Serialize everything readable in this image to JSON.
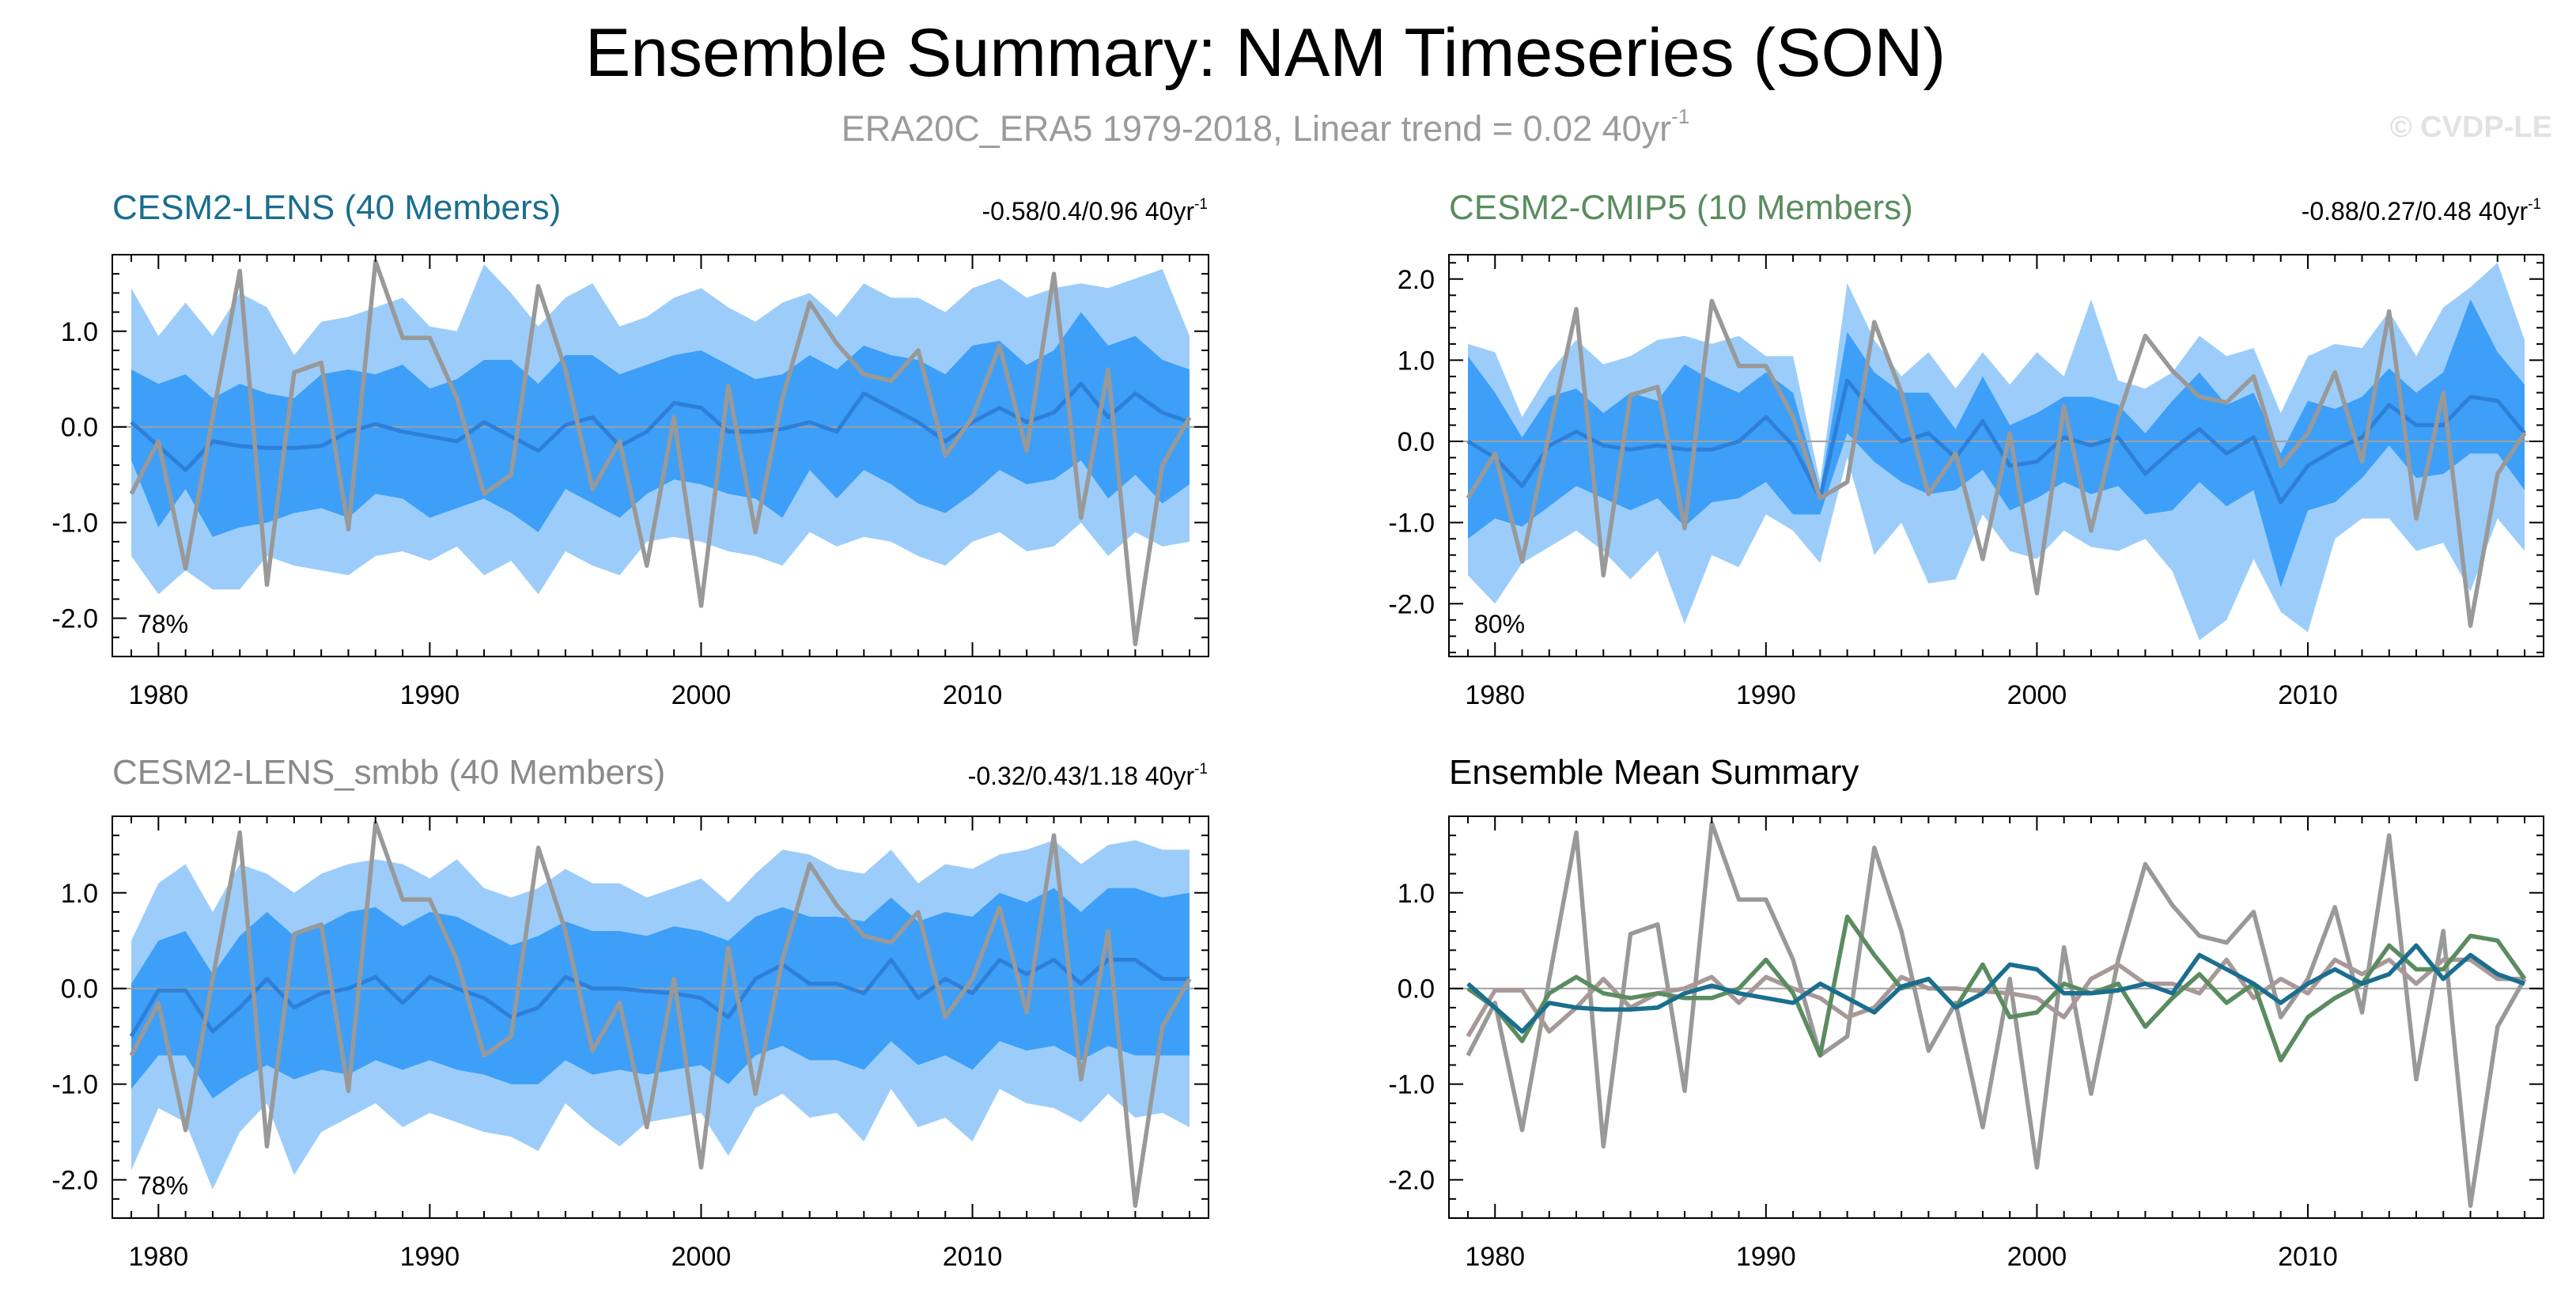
{
  "title": "Ensemble Summary: NAM Timeseries (SON)",
  "subtitle_main": "ERA20C_ERA5 1979-2018, Linear trend = 0.02 40yr",
  "subtitle_sup": "-1",
  "watermark": "© CVDP-LE",
  "colors": {
    "outer_band": "#9ccdfa",
    "inner_band": "#3d9ff7",
    "ens_mean_line": "#2e7fd8",
    "obs_line": "#999999",
    "zero_line": "#a0a0a0",
    "lens_title": "#1a6e8e",
    "cmip5_title": "#5a8c5f",
    "smbb_title": "#8a8a8a",
    "summary_title": "#000000"
  },
  "panels": [
    {
      "title": "CESM2-LENS (40 Members)",
      "stat": "-0.58/0.4/0.96 40yr",
      "stat_sup": "-1",
      "pct": "78%"
    },
    {
      "title": "CESM2-CMIP5 (10 Members)",
      "stat": "-0.88/0.27/0.48 40yr",
      "stat_sup": "-1",
      "pct": "80%"
    },
    {
      "title": "CESM2-LENS_smbb (40 Members)",
      "stat": "-0.32/0.43/1.18 40yr",
      "stat_sup": "-1",
      "pct": "78%"
    },
    {
      "title": "Ensemble Mean Summary",
      "stat": "",
      "stat_sup": "",
      "pct": ""
    }
  ],
  "chart_data": [
    {
      "type": "area",
      "name": "CESM2-LENS (40 Members)",
      "xlim": [
        1978.3,
        2018.7
      ],
      "ylim": [
        -2.4,
        1.8
      ],
      "yticks": [
        1.0,
        0.0,
        -1.0,
        -2.0
      ],
      "ytick_labels": [
        "1.0",
        "0.0",
        "-1.0",
        "-2.0"
      ],
      "xticks": [
        1980,
        1990,
        2000,
        2010
      ],
      "xtick_labels": [
        "1980",
        "1990",
        "2000",
        "2010"
      ],
      "x_start": 1979,
      "obs": [
        -0.7,
        -0.15,
        -1.48,
        0.1,
        1.63,
        -1.65,
        0.57,
        0.67,
        -1.07,
        1.73,
        0.93,
        0.93,
        0.3,
        -0.7,
        -0.5,
        1.47,
        0.6,
        -0.65,
        -0.15,
        -1.45,
        0.1,
        -1.87,
        0.43,
        -1.1,
        0.3,
        1.3,
        0.87,
        0.55,
        0.48,
        0.8,
        -0.3,
        0.1,
        0.85,
        -0.25,
        1.6,
        -0.95,
        0.6,
        -2.27,
        -0.4,
        0.1
      ],
      "mean": [
        0.05,
        -0.2,
        -0.45,
        -0.15,
        -0.2,
        -0.22,
        -0.22,
        -0.2,
        -0.05,
        0.03,
        -0.05,
        -0.1,
        -0.15,
        0.05,
        -0.1,
        -0.25,
        0.02,
        0.1,
        -0.2,
        -0.05,
        0.25,
        0.2,
        -0.05,
        -0.05,
        -0.02,
        0.05,
        -0.05,
        0.35,
        0.2,
        0.05,
        -0.15,
        0.05,
        0.2,
        0.05,
        0.15,
        0.45,
        0.1,
        0.35,
        0.15,
        0.05
      ],
      "p10": [
        -0.35,
        -1.05,
        -0.65,
        -1.15,
        -1.05,
        -1.0,
        -0.9,
        -0.85,
        -0.95,
        -0.7,
        -0.75,
        -0.95,
        -0.85,
        -0.75,
        -0.9,
        -1.1,
        -0.65,
        -0.8,
        -0.95,
        -0.7,
        -0.55,
        -0.6,
        -0.7,
        -0.75,
        -0.95,
        -0.45,
        -0.75,
        -0.45,
        -0.6,
        -0.8,
        -0.9,
        -0.7,
        -0.45,
        -0.6,
        -0.55,
        -0.35,
        -0.75,
        -0.5,
        -0.8,
        -0.6
      ],
      "p90": [
        0.6,
        0.45,
        0.55,
        0.3,
        0.45,
        0.35,
        0.3,
        0.55,
        0.6,
        0.55,
        0.65,
        0.4,
        0.5,
        0.7,
        0.7,
        0.45,
        0.75,
        0.75,
        0.55,
        0.65,
        0.75,
        0.8,
        0.65,
        0.5,
        0.55,
        0.75,
        0.6,
        0.85,
        0.75,
        0.7,
        0.55,
        0.85,
        0.9,
        0.65,
        0.8,
        1.2,
        0.85,
        0.95,
        0.7,
        0.6
      ],
      "min": [
        -1.35,
        -1.75,
        -1.5,
        -1.7,
        -1.7,
        -1.35,
        -1.45,
        -1.5,
        -1.55,
        -1.35,
        -1.3,
        -1.4,
        -1.25,
        -1.55,
        -1.4,
        -1.75,
        -1.3,
        -1.45,
        -1.55,
        -1.2,
        -1.15,
        -1.2,
        -1.3,
        -1.35,
        -1.45,
        -1.1,
        -1.25,
        -1.15,
        -1.2,
        -1.35,
        -1.45,
        -1.2,
        -1.1,
        -1.3,
        -1.25,
        -1.0,
        -1.35,
        -1.1,
        -1.25,
        -1.2
      ],
      "max": [
        1.45,
        0.95,
        1.3,
        0.95,
        1.4,
        1.25,
        0.75,
        1.1,
        1.15,
        1.25,
        1.35,
        1.05,
        1.0,
        1.7,
        1.4,
        1.05,
        1.35,
        1.5,
        1.05,
        1.15,
        1.35,
        1.45,
        1.25,
        1.1,
        1.3,
        1.4,
        1.15,
        1.5,
        1.35,
        1.35,
        1.2,
        1.45,
        1.55,
        1.35,
        1.45,
        1.5,
        1.45,
        1.55,
        1.65,
        0.95
      ]
    },
    {
      "type": "area",
      "name": "CESM2-CMIP5 (10 Members)",
      "xlim": [
        1978.3,
        2018.7
      ],
      "ylim": [
        -2.65,
        2.3
      ],
      "yticks": [
        2.0,
        1.0,
        0.0,
        -1.0,
        -2.0
      ],
      "ytick_labels": [
        "2.0",
        "1.0",
        "0.0",
        "-1.0",
        "-2.0"
      ],
      "xticks": [
        1980,
        1990,
        2000,
        2010
      ],
      "xtick_labels": [
        "1980",
        "1990",
        "2000",
        "2010"
      ],
      "x_start": 1979,
      "obs": [
        -0.7,
        -0.15,
        -1.48,
        0.1,
        1.63,
        -1.65,
        0.57,
        0.67,
        -1.07,
        1.73,
        0.93,
        0.93,
        0.3,
        -0.7,
        -0.5,
        1.47,
        0.6,
        -0.65,
        -0.15,
        -1.45,
        0.1,
        -1.87,
        0.43,
        -1.1,
        0.3,
        1.3,
        0.87,
        0.55,
        0.48,
        0.8,
        -0.3,
        0.1,
        0.85,
        -0.25,
        1.6,
        -0.95,
        0.6,
        -2.27,
        -0.4,
        0.1
      ],
      "mean": [
        0.0,
        -0.2,
        -0.55,
        -0.05,
        0.12,
        -0.05,
        -0.1,
        -0.05,
        -0.1,
        -0.1,
        0.0,
        0.3,
        -0.05,
        -0.7,
        0.75,
        0.35,
        0.0,
        0.1,
        -0.2,
        0.25,
        -0.3,
        -0.25,
        0.05,
        -0.05,
        0.05,
        -0.4,
        -0.1,
        0.15,
        -0.15,
        0.05,
        -0.75,
        -0.3,
        -0.1,
        0.05,
        0.45,
        0.2,
        0.2,
        0.55,
        0.5,
        0.1
      ],
      "p10": [
        -1.2,
        -0.95,
        -1.05,
        -0.8,
        -0.55,
        -0.7,
        -0.85,
        -0.7,
        -1.05,
        -0.75,
        -0.7,
        -0.5,
        -0.9,
        -0.9,
        0.1,
        -0.25,
        -0.5,
        -0.65,
        -0.6,
        -0.35,
        -0.85,
        -0.7,
        -0.5,
        -0.65,
        -0.55,
        -0.9,
        -0.85,
        -0.5,
        -0.8,
        -0.6,
        -1.8,
        -0.85,
        -0.75,
        -0.45,
        -0.05,
        -0.45,
        -0.4,
        -0.15,
        -0.15,
        -0.6
      ],
      "p90": [
        1.05,
        0.6,
        0.05,
        0.55,
        0.65,
        0.35,
        0.6,
        0.5,
        0.95,
        0.75,
        0.6,
        0.85,
        0.6,
        -0.6,
        1.35,
        0.85,
        0.6,
        0.6,
        0.15,
        0.8,
        0.2,
        0.35,
        0.55,
        0.55,
        0.45,
        0.1,
        0.5,
        0.85,
        0.45,
        0.6,
        -0.15,
        0.5,
        0.4,
        0.55,
        0.9,
        0.6,
        0.85,
        1.75,
        1.1,
        0.7
      ],
      "min": [
        -1.65,
        -2.0,
        -1.5,
        -1.3,
        -1.1,
        -1.35,
        -1.7,
        -1.35,
        -2.25,
        -1.4,
        -1.55,
        -0.9,
        -1.1,
        -1.5,
        -0.2,
        -1.4,
        -1.0,
        -1.75,
        -1.7,
        -0.9,
        -1.35,
        -1.45,
        -1.1,
        -1.3,
        -1.35,
        -1.2,
        -1.6,
        -2.45,
        -2.2,
        -1.45,
        -2.1,
        -2.35,
        -1.2,
        -0.95,
        -0.95,
        -1.35,
        -1.25,
        -1.85,
        -0.95,
        -1.35
      ],
      "max": [
        1.2,
        1.1,
        0.3,
        0.85,
        1.25,
        0.95,
        1.05,
        1.25,
        1.3,
        1.2,
        1.3,
        1.05,
        1.05,
        -0.5,
        1.95,
        1.25,
        0.8,
        1.1,
        0.65,
        1.1,
        0.7,
        1.1,
        0.8,
        1.75,
        0.75,
        0.65,
        0.85,
        1.3,
        1.05,
        1.15,
        0.35,
        1.05,
        1.2,
        1.15,
        1.6,
        1.05,
        1.65,
        1.9,
        2.2,
        1.25
      ]
    },
    {
      "type": "area",
      "name": "CESM2-LENS_smbb (40 Members)",
      "xlim": [
        1978.3,
        2018.7
      ],
      "ylim": [
        -2.4,
        1.8
      ],
      "yticks": [
        1.0,
        0.0,
        -1.0,
        -2.0
      ],
      "ytick_labels": [
        "1.0",
        "0.0",
        "-1.0",
        "-2.0"
      ],
      "xticks": [
        1980,
        1990,
        2000,
        2010
      ],
      "xtick_labels": [
        "1980",
        "1990",
        "2000",
        "2010"
      ],
      "x_start": 1979,
      "obs": [
        -0.7,
        -0.15,
        -1.48,
        0.1,
        1.63,
        -1.65,
        0.57,
        0.67,
        -1.07,
        1.73,
        0.93,
        0.93,
        0.3,
        -0.7,
        -0.5,
        1.47,
        0.6,
        -0.65,
        -0.15,
        -1.45,
        0.1,
        -1.87,
        0.43,
        -1.1,
        0.3,
        1.3,
        0.87,
        0.55,
        0.48,
        0.8,
        -0.3,
        0.1,
        0.85,
        -0.25,
        1.6,
        -0.95,
        0.6,
        -2.27,
        -0.4,
        0.1
      ],
      "mean": [
        -0.5,
        -0.02,
        -0.02,
        -0.45,
        -0.2,
        0.1,
        -0.2,
        -0.05,
        0.0,
        0.12,
        -0.15,
        0.12,
        0.0,
        -0.1,
        -0.3,
        -0.2,
        0.12,
        0.0,
        0.0,
        -0.03,
        -0.05,
        -0.1,
        -0.3,
        0.1,
        0.25,
        0.05,
        0.05,
        -0.05,
        0.3,
        -0.1,
        0.1,
        -0.05,
        0.3,
        0.15,
        0.3,
        0.05,
        0.3,
        0.3,
        0.1,
        0.1
      ],
      "p10": [
        -1.05,
        -0.7,
        -0.7,
        -1.15,
        -0.95,
        -0.8,
        -0.95,
        -0.85,
        -0.9,
        -0.75,
        -0.85,
        -0.75,
        -0.85,
        -0.9,
        -1.0,
        -1.0,
        -0.75,
        -0.9,
        -0.85,
        -0.9,
        -0.85,
        -0.8,
        -1.0,
        -0.7,
        -0.6,
        -0.75,
        -0.75,
        -0.85,
        -0.55,
        -0.8,
        -0.7,
        -0.85,
        -0.55,
        -0.65,
        -0.6,
        -0.75,
        -0.6,
        -0.7,
        -0.7,
        -0.7
      ],
      "p90": [
        0.05,
        0.5,
        0.6,
        0.15,
        0.55,
        0.8,
        0.55,
        0.65,
        0.8,
        0.85,
        0.65,
        0.8,
        0.75,
        0.6,
        0.45,
        0.55,
        0.7,
        0.6,
        0.6,
        0.55,
        0.65,
        0.6,
        0.5,
        0.75,
        0.85,
        0.75,
        0.75,
        0.7,
        0.95,
        0.7,
        0.8,
        0.75,
        1.0,
        0.9,
        1.05,
        0.8,
        1.05,
        1.05,
        0.95,
        1.0
      ],
      "min": [
        -1.9,
        -1.25,
        -1.4,
        -2.1,
        -1.5,
        -1.2,
        -1.95,
        -1.5,
        -1.35,
        -1.2,
        -1.45,
        -1.3,
        -1.4,
        -1.5,
        -1.55,
        -1.7,
        -1.2,
        -1.45,
        -1.65,
        -1.4,
        -1.35,
        -1.3,
        -1.75,
        -1.25,
        -1.1,
        -1.35,
        -1.3,
        -1.6,
        -1.05,
        -1.45,
        -1.35,
        -1.6,
        -1.05,
        -1.2,
        -1.25,
        -1.4,
        -1.1,
        -1.35,
        -1.3,
        -1.45
      ],
      "max": [
        0.5,
        1.1,
        1.3,
        0.8,
        1.3,
        1.2,
        1.0,
        1.2,
        1.3,
        1.35,
        1.3,
        1.15,
        1.35,
        1.05,
        0.95,
        1.05,
        1.25,
        1.1,
        1.1,
        0.95,
        1.05,
        1.15,
        0.9,
        1.2,
        1.45,
        1.4,
        1.25,
        1.2,
        1.45,
        1.1,
        1.3,
        1.25,
        1.4,
        1.45,
        1.55,
        1.3,
        1.5,
        1.55,
        1.45,
        1.45
      ]
    },
    {
      "type": "line",
      "name": "Ensemble Mean Summary",
      "xlim": [
        1978.3,
        2018.7
      ],
      "ylim": [
        -2.4,
        1.8
      ],
      "yticks": [
        1.0,
        0.0,
        -1.0,
        -2.0
      ],
      "ytick_labels": [
        "1.0",
        "0.0",
        "-1.0",
        "-2.0"
      ],
      "xticks": [
        1980,
        1990,
        2000,
        2010
      ],
      "xtick_labels": [
        "1980",
        "1990",
        "2000",
        "2010"
      ],
      "x_start": 1979,
      "series": [
        {
          "name": "ERA20C_ERA5",
          "color": "#999999",
          "values": [
            -0.7,
            -0.15,
            -1.48,
            0.1,
            1.63,
            -1.65,
            0.57,
            0.67,
            -1.07,
            1.73,
            0.93,
            0.93,
            0.3,
            -0.7,
            -0.5,
            1.47,
            0.6,
            -0.65,
            -0.15,
            -1.45,
            0.1,
            -1.87,
            0.43,
            -1.1,
            0.3,
            1.3,
            0.87,
            0.55,
            0.48,
            0.8,
            -0.3,
            0.1,
            0.85,
            -0.25,
            1.6,
            -0.95,
            0.6,
            -2.27,
            -0.4,
            0.1
          ]
        },
        {
          "name": "CESM2-LENS_smbb",
          "color": "#a89898",
          "values": [
            -0.5,
            -0.02,
            -0.02,
            -0.45,
            -0.2,
            0.1,
            -0.2,
            -0.05,
            0.0,
            0.12,
            -0.15,
            0.12,
            0.0,
            -0.1,
            -0.3,
            -0.2,
            0.12,
            0.0,
            0.0,
            -0.03,
            -0.05,
            -0.1,
            -0.3,
            0.1,
            0.25,
            0.05,
            0.05,
            -0.05,
            0.3,
            -0.1,
            0.1,
            -0.05,
            0.3,
            0.15,
            0.3,
            0.05,
            0.3,
            0.3,
            0.1,
            0.1
          ]
        },
        {
          "name": "CESM2-CMIP5",
          "color": "#5a8c5f",
          "values": [
            0.0,
            -0.2,
            -0.55,
            -0.05,
            0.12,
            -0.05,
            -0.1,
            -0.05,
            -0.1,
            -0.1,
            0.0,
            0.3,
            -0.05,
            -0.7,
            0.75,
            0.35,
            0.0,
            0.1,
            -0.2,
            0.25,
            -0.3,
            -0.25,
            0.05,
            -0.05,
            0.05,
            -0.4,
            -0.1,
            0.15,
            -0.15,
            0.05,
            -0.75,
            -0.3,
            -0.1,
            0.05,
            0.45,
            0.2,
            0.2,
            0.55,
            0.5,
            0.1
          ]
        },
        {
          "name": "CESM2-LENS",
          "color": "#1a6e8e",
          "values": [
            0.05,
            -0.2,
            -0.45,
            -0.15,
            -0.2,
            -0.22,
            -0.22,
            -0.2,
            -0.05,
            0.03,
            -0.05,
            -0.1,
            -0.15,
            0.05,
            -0.1,
            -0.25,
            0.02,
            0.1,
            -0.2,
            -0.05,
            0.25,
            0.2,
            -0.05,
            -0.05,
            -0.02,
            0.05,
            -0.05,
            0.35,
            0.2,
            0.05,
            -0.15,
            0.05,
            0.2,
            0.05,
            0.15,
            0.45,
            0.1,
            0.35,
            0.15,
            0.05
          ]
        }
      ]
    }
  ]
}
